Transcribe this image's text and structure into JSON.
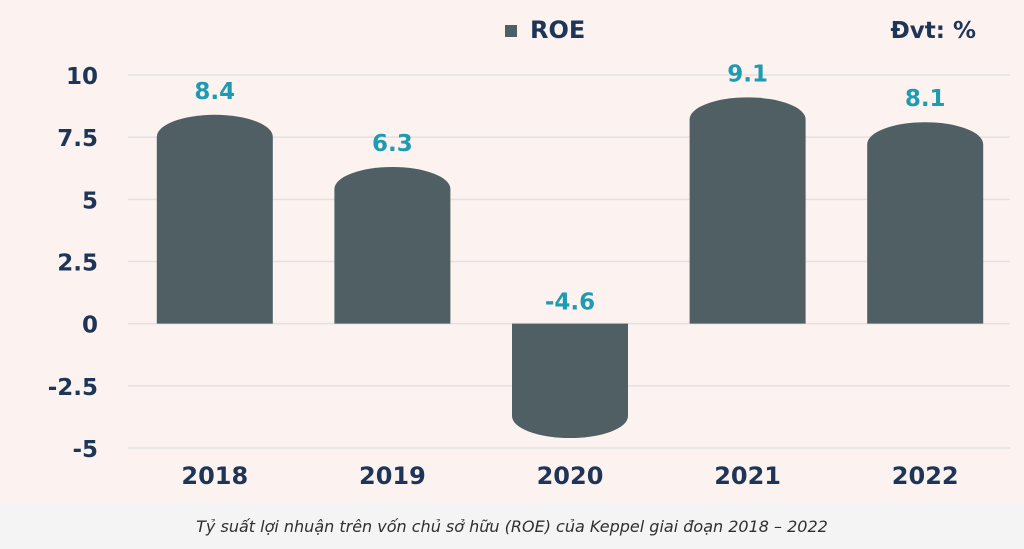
{
  "chart_data": {
    "type": "bar",
    "categories": [
      "2018",
      "2019",
      "2020",
      "2021",
      "2022"
    ],
    "series": [
      {
        "name": "ROE",
        "values": [
          8.4,
          6.3,
          -4.6,
          9.1,
          8.1
        ]
      }
    ],
    "data_labels": [
      "8.4",
      "6.3",
      "-4.6",
      "9.1",
      "8.1"
    ],
    "unit_label": "Đvt: %",
    "yticks": [
      10,
      7.5,
      5,
      2.5,
      0,
      -2.5,
      -5
    ],
    "ytick_labels": [
      "10",
      "7.5",
      "5",
      "2.5",
      "0",
      "-2.5",
      "-5"
    ],
    "ylim": [
      -5,
      10
    ],
    "grid": true,
    "legend_position": "top-center",
    "colors": {
      "bar": "#4f5f63",
      "label": "#1e9bb0",
      "axis_text": "#1d3557",
      "grid": "#e2e2e2",
      "background": "#fcf2f0"
    }
  },
  "caption": "Tỷ suất lợi nhuận trên vốn chủ sở hữu (ROE) của Keppel giai đoạn 2018 – 2022"
}
